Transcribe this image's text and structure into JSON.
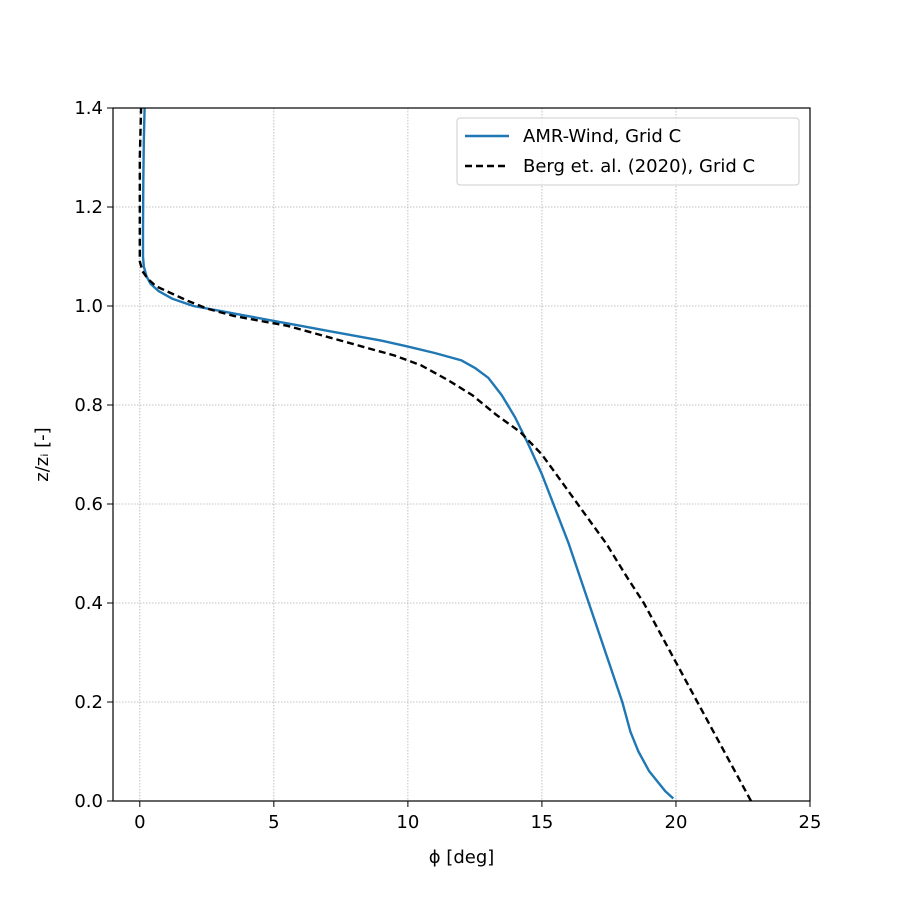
{
  "chart_data": {
    "type": "line",
    "xlabel": "ϕ [deg]",
    "ylabel": "z/zᵢ [-]",
    "xlim": [
      -1,
      25
    ],
    "ylim": [
      0,
      1.4
    ],
    "xticks": [
      0,
      5,
      10,
      15,
      20,
      25
    ],
    "yticks": [
      0.0,
      0.2,
      0.4,
      0.6,
      0.8,
      1.0,
      1.2,
      1.4
    ],
    "xtick_labels": [
      "0",
      "5",
      "10",
      "15",
      "20",
      "25"
    ],
    "ytick_labels": [
      "0.0",
      "0.2",
      "0.4",
      "0.6",
      "0.8",
      "1.0",
      "1.2",
      "1.4"
    ],
    "grid": true,
    "legend_position": "top-right",
    "series": [
      {
        "name": "AMR-Wind, Grid C",
        "color": "#1f77b4",
        "style": "solid",
        "points": [
          [
            19.9,
            0.005
          ],
          [
            19.6,
            0.02
          ],
          [
            19.0,
            0.06
          ],
          [
            18.6,
            0.1
          ],
          [
            18.3,
            0.14
          ],
          [
            18.0,
            0.2
          ],
          [
            17.5,
            0.28
          ],
          [
            17.0,
            0.36
          ],
          [
            16.5,
            0.44
          ],
          [
            16.0,
            0.52
          ],
          [
            15.5,
            0.59
          ],
          [
            15.0,
            0.66
          ],
          [
            14.5,
            0.72
          ],
          [
            14.0,
            0.775
          ],
          [
            13.5,
            0.82
          ],
          [
            13.0,
            0.855
          ],
          [
            12.5,
            0.875
          ],
          [
            12.0,
            0.89
          ],
          [
            11.0,
            0.905
          ],
          [
            10.0,
            0.918
          ],
          [
            9.0,
            0.93
          ],
          [
            8.0,
            0.94
          ],
          [
            7.0,
            0.95
          ],
          [
            6.0,
            0.96
          ],
          [
            5.0,
            0.97
          ],
          [
            4.0,
            0.98
          ],
          [
            3.0,
            0.99
          ],
          [
            2.0,
            1.0
          ],
          [
            1.2,
            1.015
          ],
          [
            0.7,
            1.03
          ],
          [
            0.4,
            1.045
          ],
          [
            0.25,
            1.06
          ],
          [
            0.15,
            1.08
          ],
          [
            0.12,
            1.1
          ],
          [
            0.12,
            1.15
          ],
          [
            0.13,
            1.25
          ],
          [
            0.15,
            1.33
          ],
          [
            0.18,
            1.4
          ]
        ]
      },
      {
        "name": "Berg et. al. (2020), Grid C",
        "color": "#000000",
        "style": "dashed",
        "points": [
          [
            22.8,
            0.0
          ],
          [
            22.4,
            0.04
          ],
          [
            21.8,
            0.1
          ],
          [
            21.2,
            0.16
          ],
          [
            20.6,
            0.22
          ],
          [
            20.0,
            0.28
          ],
          [
            19.4,
            0.34
          ],
          [
            18.8,
            0.4
          ],
          [
            18.2,
            0.45
          ],
          [
            17.4,
            0.52
          ],
          [
            16.6,
            0.58
          ],
          [
            15.8,
            0.64
          ],
          [
            15.0,
            0.7
          ],
          [
            14.2,
            0.745
          ],
          [
            13.3,
            0.78
          ],
          [
            12.4,
            0.82
          ],
          [
            11.5,
            0.85
          ],
          [
            10.5,
            0.88
          ],
          [
            9.5,
            0.9
          ],
          [
            8.5,
            0.915
          ],
          [
            7.5,
            0.93
          ],
          [
            6.5,
            0.945
          ],
          [
            5.5,
            0.96
          ],
          [
            4.5,
            0.97
          ],
          [
            3.5,
            0.98
          ],
          [
            2.5,
            0.995
          ],
          [
            1.8,
            1.01
          ],
          [
            1.2,
            1.025
          ],
          [
            0.6,
            1.04
          ],
          [
            0.3,
            1.055
          ],
          [
            0.1,
            1.07
          ],
          [
            0.0,
            1.09
          ],
          [
            0.0,
            1.12
          ],
          [
            0.0,
            1.2
          ],
          [
            0.0,
            1.3
          ],
          [
            0.05,
            1.4
          ]
        ]
      }
    ]
  }
}
